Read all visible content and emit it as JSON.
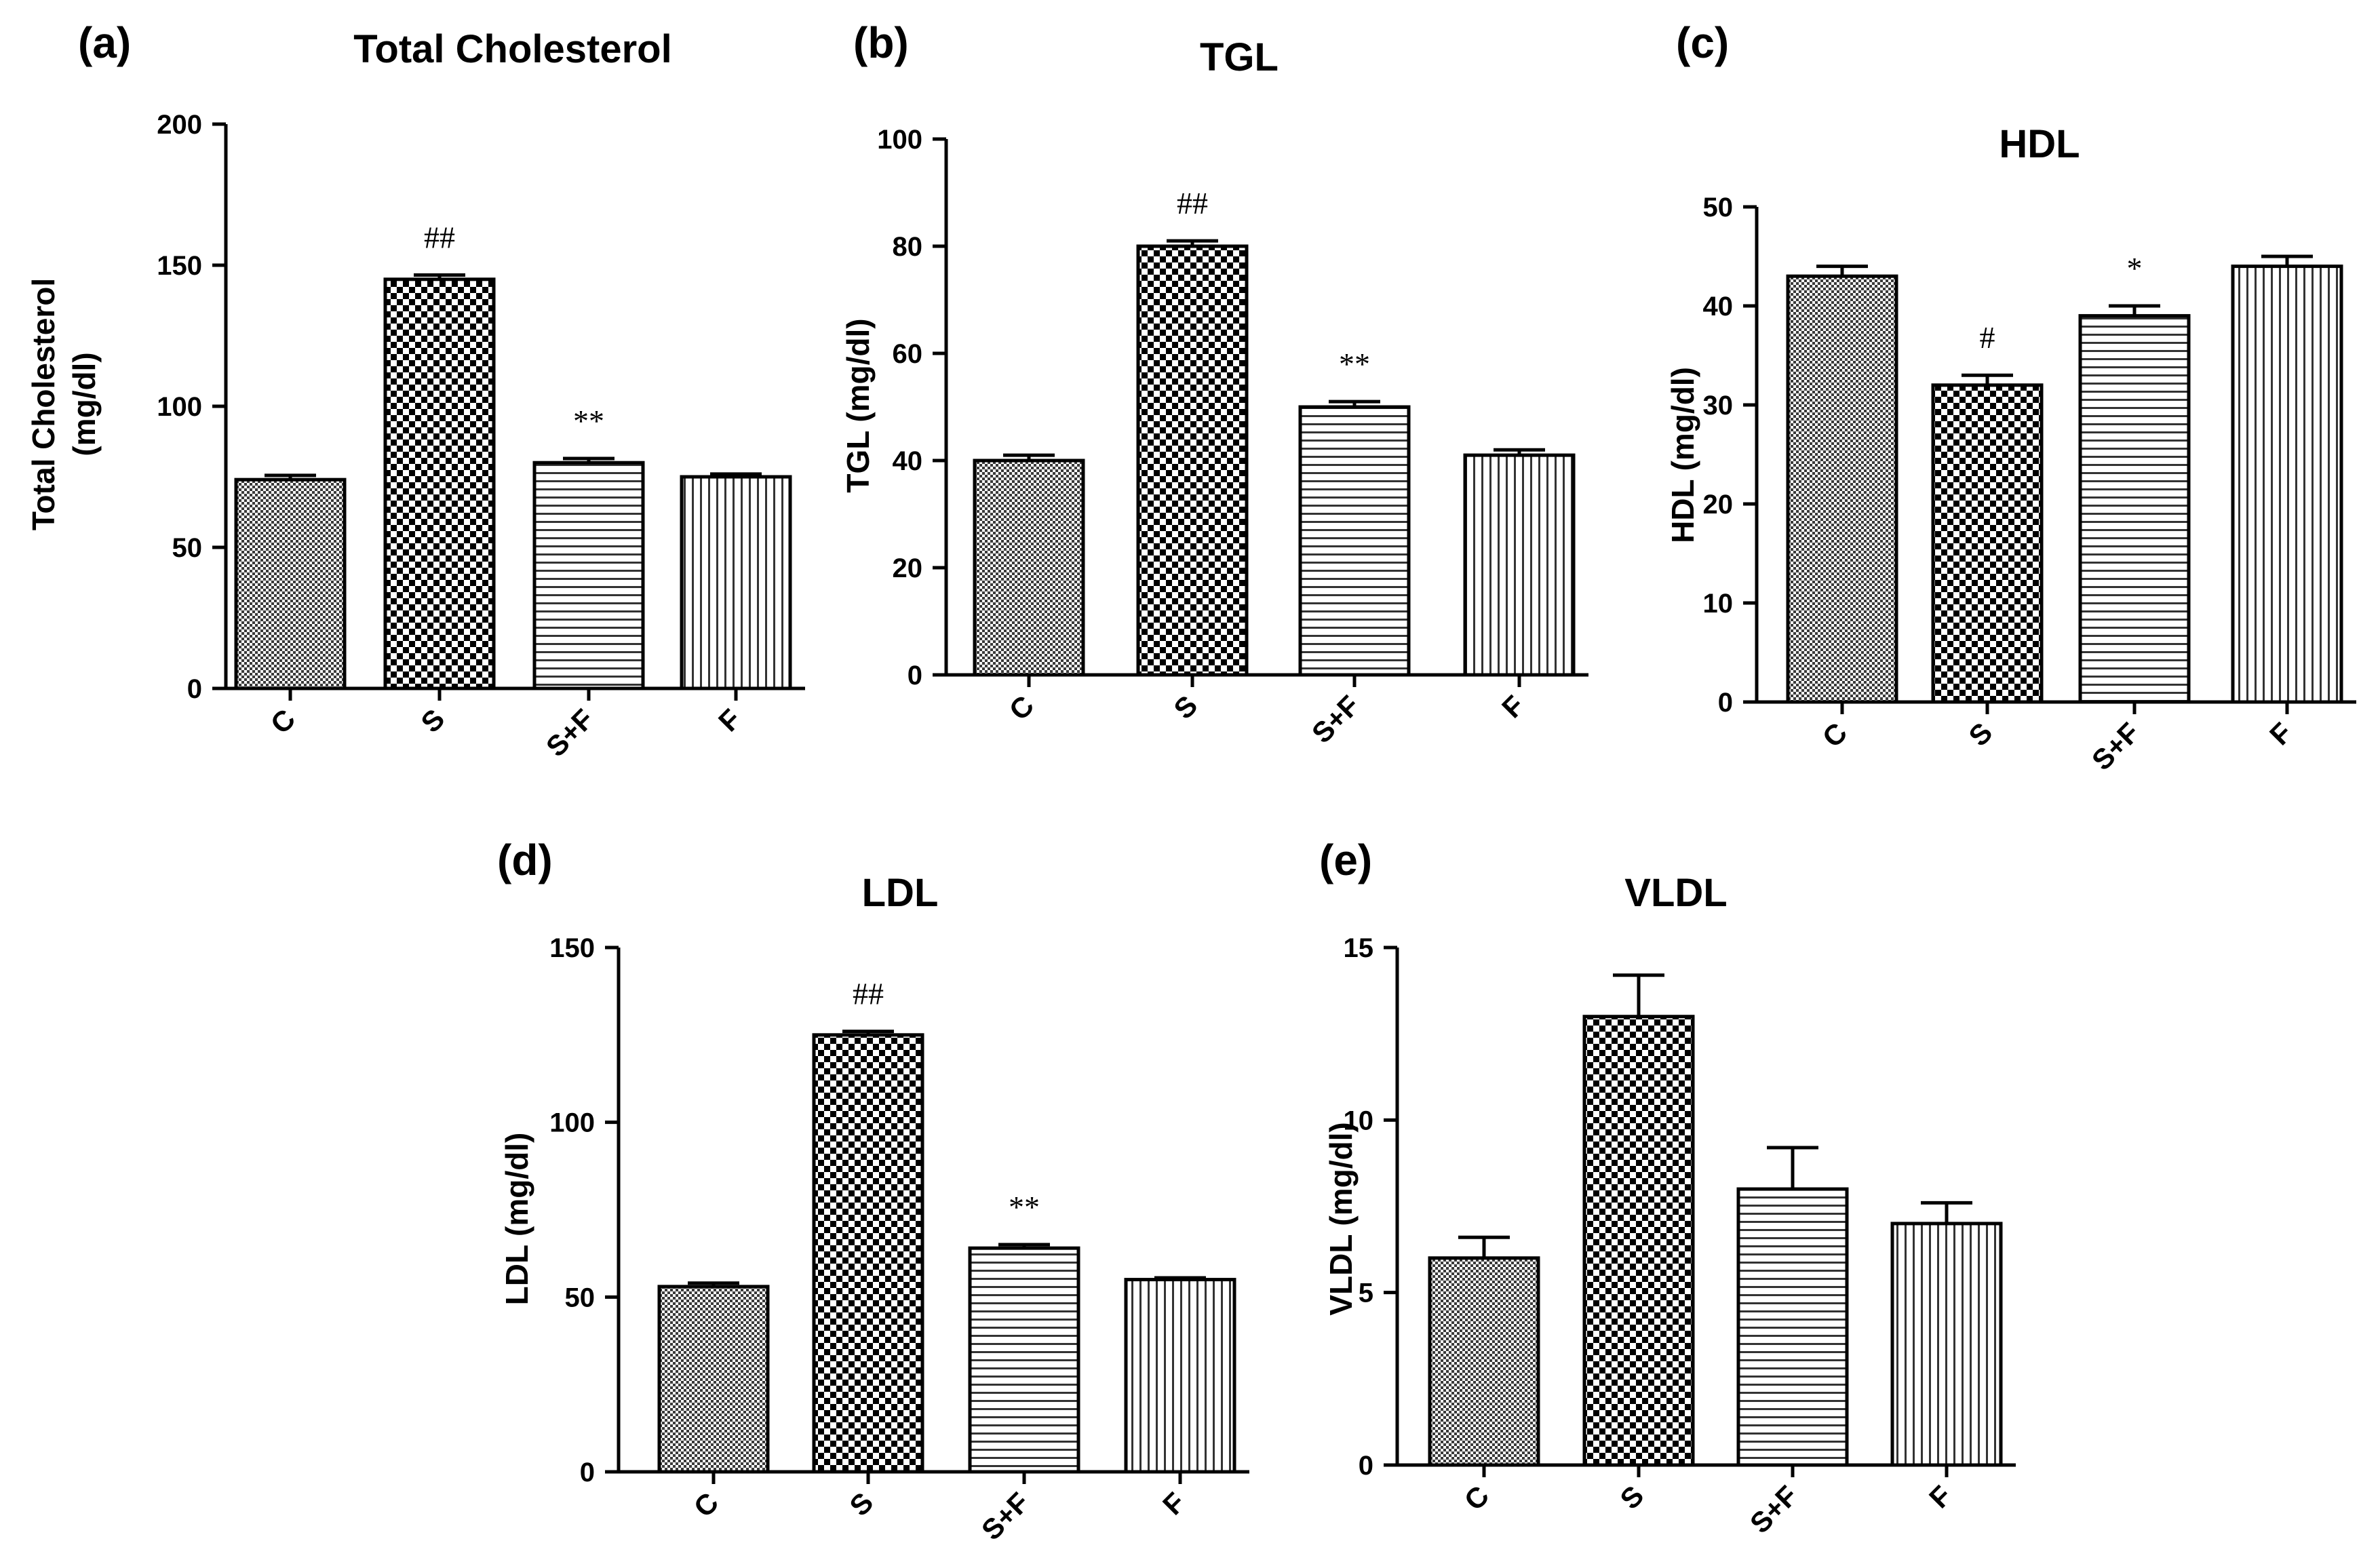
{
  "chart_data": [
    {
      "type": "bar",
      "panel": "(a)",
      "title": "Total Cholesterol",
      "ylabel_lines": [
        "Total Cholesterol",
        "(mg/dl)"
      ],
      "xlabel": "",
      "categories": [
        "C",
        "S",
        "S+F",
        "F"
      ],
      "values": [
        74,
        145,
        80,
        75
      ],
      "errors": [
        1.5,
        1.5,
        1.5,
        1
      ],
      "significance": [
        "",
        "##",
        "**",
        ""
      ],
      "patterns": [
        "checker-fine",
        "checker-coarse",
        "hlines",
        "vlines"
      ],
      "ylim": [
        0,
        200
      ],
      "yticks": [
        0,
        50,
        100,
        150,
        200
      ]
    },
    {
      "type": "bar",
      "panel": "(b)",
      "title": "TGL",
      "ylabel_lines": [
        "TGL (mg/dl)"
      ],
      "xlabel": "",
      "categories": [
        "C",
        "S",
        "S+F",
        "F"
      ],
      "values": [
        40,
        80,
        50,
        41
      ],
      "errors": [
        1,
        1,
        1,
        1
      ],
      "significance": [
        "",
        "##",
        "**",
        ""
      ],
      "patterns": [
        "checker-fine",
        "checker-coarse",
        "hlines",
        "vlines"
      ],
      "ylim": [
        0,
        100
      ],
      "yticks": [
        0,
        20,
        40,
        60,
        80,
        100
      ]
    },
    {
      "type": "bar",
      "panel": "(c)",
      "title": "HDL",
      "ylabel_lines": [
        "HDL (mg/dl)"
      ],
      "xlabel": "",
      "categories": [
        "C",
        "S",
        "S+F",
        "F"
      ],
      "values": [
        43,
        32,
        39,
        44
      ],
      "errors": [
        1,
        1,
        1,
        1
      ],
      "significance": [
        "",
        "#",
        "*",
        ""
      ],
      "patterns": [
        "checker-fine",
        "checker-coarse",
        "hlines",
        "vlines"
      ],
      "ylim": [
        0,
        50
      ],
      "yticks": [
        0,
        10,
        20,
        30,
        40,
        50
      ]
    },
    {
      "type": "bar",
      "panel": "(d)",
      "title": "LDL",
      "ylabel_lines": [
        "LDL (mg/dl)"
      ],
      "xlabel": "",
      "categories": [
        "C",
        "S",
        "S+F",
        "F"
      ],
      "values": [
        53,
        125,
        64,
        55
      ],
      "errors": [
        1,
        1,
        1,
        0.5
      ],
      "significance": [
        "",
        "##",
        "**",
        ""
      ],
      "patterns": [
        "checker-fine",
        "checker-coarse",
        "hlines",
        "vlines"
      ],
      "ylim": [
        0,
        150
      ],
      "yticks": [
        0,
        50,
        100,
        150
      ]
    },
    {
      "type": "bar",
      "panel": "(e)",
      "title": "VLDL",
      "ylabel_lines": [
        "VLDL (mg/dl)"
      ],
      "xlabel": "",
      "categories": [
        "C",
        "S",
        "S+F",
        "F"
      ],
      "values": [
        6,
        13,
        8,
        7
      ],
      "errors": [
        0.6,
        1.2,
        1.2,
        0.6
      ],
      "significance": [
        "",
        "",
        "",
        ""
      ],
      "patterns": [
        "checker-fine",
        "checker-coarse",
        "hlines",
        "vlines"
      ],
      "ylim": [
        0,
        15
      ],
      "yticks": [
        0,
        5,
        10,
        15
      ]
    }
  ]
}
